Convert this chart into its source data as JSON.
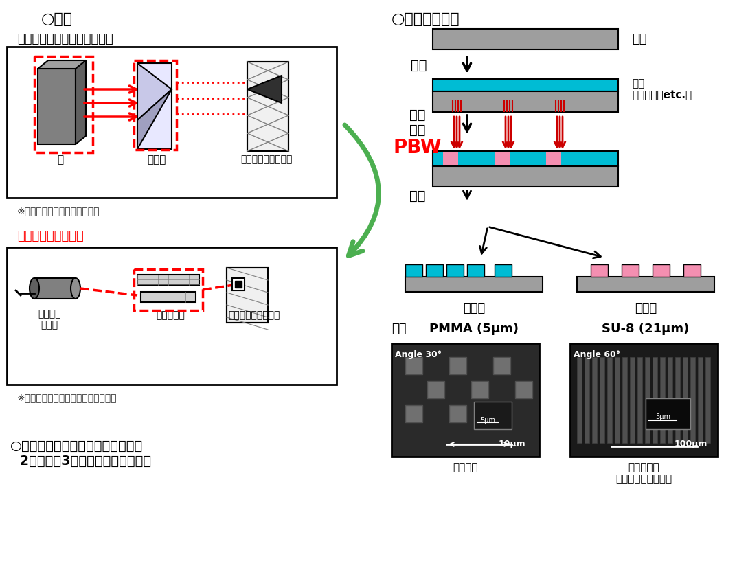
{
  "bg_color": "#ffffff",
  "title_left": "○特徴",
  "title_right": "○加工プロセス",
  "mask_process_title": "マスクプロセス（従来技術）",
  "direct_draw_title": "直接描画（本技術）",
  "mask_note": "※露光の前にマスク製作が必要",
  "direct_note": "※描画データを作るだけで描画が可能",
  "label_light": "光",
  "label_mask": "マスク",
  "label_material": "材料（レジスト等）",
  "label_microbeam": "マイクロ\nビーム",
  "label_scanner": "スキャナー",
  "label_sample2": "試料（レジスト等）",
  "label_substrate": "基板",
  "label_sample_right": "試料\n（レジストetc.）",
  "label_seimaku": "製膜",
  "label_chokusetsu": "直接\n描画",
  "label_pbw": "PBW",
  "label_genzo": "現像",
  "label_poji": "ポジ型",
  "label_nega": "ネガ型",
  "label_pmma": "PMMA (5μm)",
  "label_su8": "SU-8 (21μm)",
  "label_shikaku": "四角配列",
  "label_pillar": "ピラー配列\n（高アスペクト比）",
  "bottom_text": "○誘電泳動デバイスをはじめ様々な\n  2次元又は3次元の微細加工品製作",
  "angle_pmma": "Angle 30°",
  "angle_su8": "Angle 60°",
  "scale_pmma_inner": "5μm",
  "scale_pmma_outer": "10μm",
  "scale_su8_inner": "5μm",
  "scale_su8_outer": "100μm",
  "cyan_color": "#00bcd4",
  "pink_color": "#f48fb1",
  "gray_color": "#9e9e9e",
  "red_color": "#e53935",
  "green_color": "#4caf50",
  "dark_color": "#212121",
  "arrow_color": "#212121"
}
